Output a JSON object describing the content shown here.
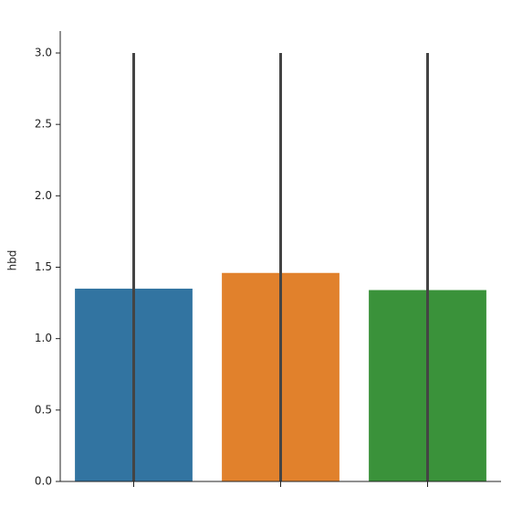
{
  "chart_data": {
    "type": "bar",
    "y_label": "hbd",
    "categories": [
      null,
      null,
      null
    ],
    "series": [
      {
        "colors": [
          "#3274a1",
          "#e1812c",
          "#3a923a"
        ],
        "values": [
          1.35,
          1.46,
          1.34
        ],
        "error_low": [
          0,
          0,
          0
        ],
        "error_high": [
          3.0,
          3.0,
          3.0
        ]
      }
    ],
    "error_color": "#444444",
    "ylim": [
      0,
      3.0
    ],
    "yticks": [
      {
        "value": 0,
        "label": "0.0"
      },
      {
        "value": 0.5,
        "label": "0.5"
      },
      {
        "value": 1,
        "label": "1.0"
      },
      {
        "value": 1.5,
        "label": "1.5"
      },
      {
        "value": 2,
        "label": "2.0"
      },
      {
        "value": 2.5,
        "label": "2.5"
      },
      {
        "value": 3,
        "label": "3.0"
      }
    ],
    "grid": false
  }
}
